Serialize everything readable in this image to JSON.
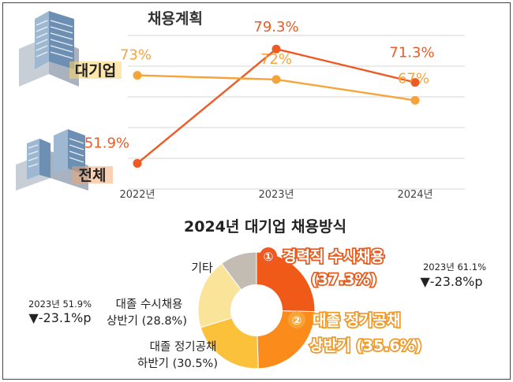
{
  "colors": {
    "overall": "#ee5a24",
    "large_firms": "#f6a43a",
    "pie_career": "#f05a18",
    "pie_new_first": "#fb8c1c",
    "pie_new_second": "#fbc13a",
    "pie_new_grad_rolling": "#f9e49a",
    "pie_other": "#c2bcb2"
  },
  "chart_data": [
    {
      "type": "line",
      "title": "채용계획",
      "categories": [
        "2022년",
        "2023년",
        "2024년"
      ],
      "series": [
        {
          "name": "전체",
          "values": [
            51.9,
            79.3,
            71.3
          ],
          "labels": [
            "51.9%",
            "79.3%",
            "71.3%"
          ]
        },
        {
          "name": "대기업",
          "values": [
            73,
            72,
            67
          ],
          "labels": [
            "73%",
            "72%",
            "67%"
          ]
        }
      ],
      "ylim": [
        45,
        85
      ],
      "grid": true
    },
    {
      "type": "pie",
      "title": "2024년 대기업 채용방식",
      "slices": [
        {
          "label": "경력직 수시채용",
          "value": 37.3,
          "display": "(37.3%)",
          "number": "①"
        },
        {
          "label": "대졸 정기공채 상반기",
          "value": 35.6,
          "display": "(35.6%)",
          "number": "②"
        },
        {
          "label": "대졸 정기공채 하반기",
          "value": 30.5,
          "display": "(30.5%)"
        },
        {
          "label": "대졸 수시채용 상반기",
          "value": 28.8,
          "display": "(28.8%)"
        },
        {
          "label": "기타",
          "value": 15.0
        }
      ],
      "annotations": [
        {
          "year_line": "2023년 61.1%",
          "change": "▼-23.8%p"
        },
        {
          "year_line": "2023년 51.9%",
          "change": "▼-23.1%p"
        }
      ]
    }
  ],
  "text": {
    "line_title": "채용계획",
    "large_firms_label": "대기업",
    "overall_label": "전체",
    "pie_title": "2024년 대기업 채용방식",
    "career_label": "경력직 수시채용",
    "career_pct": "(37.3%)",
    "career_num": "①",
    "newgrad_h1_line1": "대졸 정기공채",
    "newgrad_h1_line2": "상반기 (35.6%)",
    "newgrad_h1_num": "②",
    "newgrad_h2_line1": "대졸 정기공채",
    "newgrad_h2_line2": "하반기 (30.5%)",
    "rolling_line1": "대졸 수시채용",
    "rolling_line2": "상반기 (28.8%)",
    "other_label": "기타",
    "right_note_line1": "2023년 61.1%",
    "right_note_line2": "▼-23.8%p",
    "left_note_line1": "2023년 51.9%",
    "left_note_line2": "▼-23.1%p"
  }
}
